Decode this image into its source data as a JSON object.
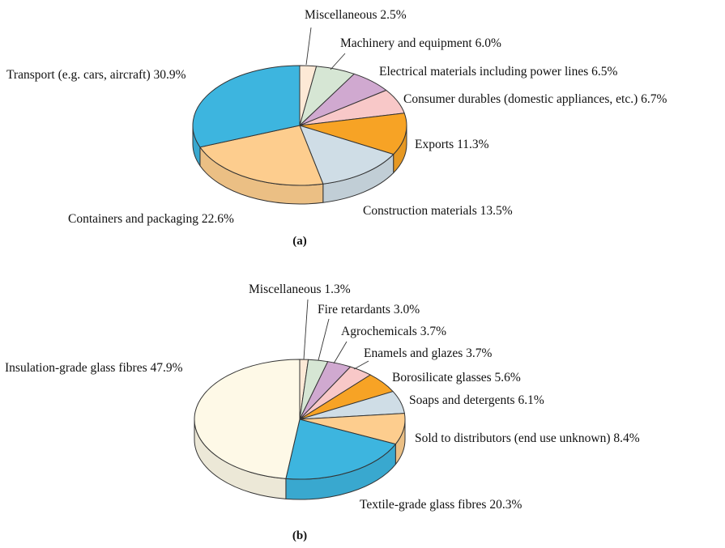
{
  "chart_data": [
    {
      "type": "pie",
      "caption": "(a)",
      "slices": [
        {
          "label": "Miscellaneous",
          "value": 2.5,
          "text": "Miscellaneous 2.5%",
          "color": "#fde9d6"
        },
        {
          "label": "Machinery and equipment",
          "value": 6.0,
          "text": "Machinery and equipment 6.0%",
          "color": "#d6e6d4"
        },
        {
          "label": "Electrical materials including power lines",
          "value": 6.5,
          "text": "Electrical materials including power lines 6.5%",
          "color": "#d0a9d0"
        },
        {
          "label": "Consumer durables (domestic appliances, etc.)",
          "value": 6.7,
          "text": "Consumer durables (domestic appliances, etc.)  6.7%",
          "color": "#f8c8c8"
        },
        {
          "label": "Exports",
          "value": 11.3,
          "text": "Exports 11.3%",
          "color": "#f7a325"
        },
        {
          "label": "Construction materials",
          "value": 13.5,
          "text": "Construction materials 13.5%",
          "color": "#cfdde6"
        },
        {
          "label": "Containers and packaging",
          "value": 22.6,
          "text": "Containers and packaging 22.6%",
          "color": "#fdcd8e"
        },
        {
          "label": "Transport (e.g. cars, aircraft)",
          "value": 30.9,
          "text": "Transport (e.g. cars, aircraft) 30.9%",
          "color": "#3db5df"
        }
      ]
    },
    {
      "type": "pie",
      "caption": "(b)",
      "slices": [
        {
          "label": "Miscellaneous",
          "value": 1.3,
          "text": "Miscellaneous 1.3%",
          "color": "#fde9d6"
        },
        {
          "label": "Fire retardants",
          "value": 3.0,
          "text": "Fire retardants 3.0%",
          "color": "#d6e6d4"
        },
        {
          "label": "Agrochemicals",
          "value": 3.7,
          "text": "Agrochemicals 3.7%",
          "color": "#d0a9d0"
        },
        {
          "label": "Enamels and glazes",
          "value": 3.7,
          "text": "Enamels and glazes 3.7%",
          "color": "#f8c8c8"
        },
        {
          "label": "Borosilicate glasses",
          "value": 5.6,
          "text": "Borosilicate glasses 5.6%",
          "color": "#f7a325"
        },
        {
          "label": "Soaps and detergents",
          "value": 6.1,
          "text": "Soaps and detergents 6.1%",
          "color": "#cfdde6"
        },
        {
          "label": "Sold to distributors (end use unknown)",
          "value": 8.4,
          "text": "Sold to distributors (end use unknown) 8.4%",
          "color": "#fdcd8e"
        },
        {
          "label": "Textile-grade glass fibres",
          "value": 20.3,
          "text": "Textile-grade glass fibres 20.3%",
          "color": "#3db5df"
        },
        {
          "label": "Insulation-grade glass fibres",
          "value": 47.9,
          "text": "Insulation-grade glass fibres 47.9%",
          "color": "#fef9e7"
        }
      ]
    }
  ]
}
